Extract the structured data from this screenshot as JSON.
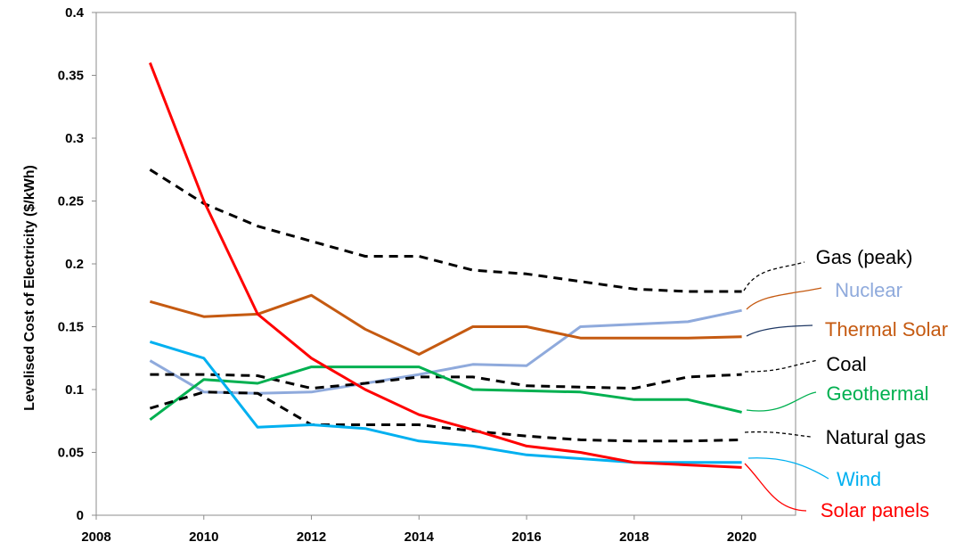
{
  "chart_data": {
    "type": "line",
    "ylabel": "Levelised Cost of Electricity ($/kWh)",
    "xlabel": "",
    "xlim": [
      2008,
      2021
    ],
    "ylim": [
      0,
      0.4
    ],
    "x_ticks": [
      "2008",
      "2010",
      "2012",
      "2014",
      "2016",
      "2018",
      "2020"
    ],
    "y_ticks": [
      "0",
      "0.05",
      "0.1",
      "0.15",
      "0.2",
      "0.25",
      "0.3",
      "0.35",
      "0.4"
    ],
    "grid": false,
    "legend": "inline labels at right end of lines",
    "series": [
      {
        "name": "Gas (peak)",
        "color": "#000000",
        "dash": true,
        "x": [
          2009,
          2010,
          2011,
          2012,
          2013,
          2014,
          2015,
          2016,
          2017,
          2018,
          2019,
          2020
        ],
        "y": [
          0.275,
          0.248,
          0.23,
          0.218,
          0.206,
          0.206,
          0.195,
          0.192,
          0.186,
          0.18,
          0.178,
          0.178
        ]
      },
      {
        "name": "Nuclear",
        "color": "#8faadc",
        "dash": false,
        "x": [
          2009,
          2010,
          2011,
          2012,
          2013,
          2014,
          2015,
          2016,
          2017,
          2018,
          2019,
          2020
        ],
        "y": [
          0.123,
          0.098,
          0.097,
          0.098,
          0.105,
          0.112,
          0.12,
          0.119,
          0.15,
          0.152,
          0.154,
          0.163
        ]
      },
      {
        "name": "Thermal Solar",
        "color": "#c55a11",
        "dash": false,
        "x": [
          2009,
          2010,
          2011,
          2012,
          2013,
          2014,
          2015,
          2016,
          2017,
          2018,
          2019,
          2020
        ],
        "y": [
          0.17,
          0.158,
          0.16,
          0.175,
          0.148,
          0.128,
          0.15,
          0.15,
          0.141,
          0.141,
          0.141,
          0.142
        ]
      },
      {
        "name": "Coal",
        "color": "#000000",
        "dash": true,
        "x": [
          2009,
          2010,
          2011,
          2012,
          2013,
          2014,
          2015,
          2016,
          2017,
          2018,
          2019,
          2020
        ],
        "y": [
          0.112,
          0.112,
          0.111,
          0.101,
          0.105,
          0.11,
          0.11,
          0.103,
          0.102,
          0.101,
          0.11,
          0.112
        ]
      },
      {
        "name": "Geothermal",
        "color": "#00b050",
        "dash": false,
        "x": [
          2009,
          2010,
          2011,
          2012,
          2013,
          2014,
          2015,
          2016,
          2017,
          2018,
          2019,
          2020
        ],
        "y": [
          0.076,
          0.108,
          0.105,
          0.118,
          0.118,
          0.118,
          0.1,
          0.099,
          0.098,
          0.092,
          0.092,
          0.082
        ]
      },
      {
        "name": "Natural gas",
        "color": "#000000",
        "dash": true,
        "x": [
          2009,
          2010,
          2011,
          2012,
          2013,
          2014,
          2015,
          2016,
          2017,
          2018,
          2019,
          2020
        ],
        "y": [
          0.085,
          0.098,
          0.097,
          0.072,
          0.072,
          0.072,
          0.067,
          0.063,
          0.06,
          0.059,
          0.059,
          0.06
        ]
      },
      {
        "name": "Wind",
        "color": "#00b0f0",
        "dash": false,
        "x": [
          2009,
          2010,
          2011,
          2012,
          2013,
          2014,
          2015,
          2016,
          2017,
          2018,
          2019,
          2020
        ],
        "y": [
          0.138,
          0.125,
          0.07,
          0.072,
          0.069,
          0.059,
          0.055,
          0.048,
          0.045,
          0.042,
          0.042,
          0.042
        ]
      },
      {
        "name": "Solar panels",
        "color": "#ff0000",
        "dash": false,
        "x": [
          2009,
          2010,
          2011,
          2012,
          2013,
          2014,
          2015,
          2016,
          2017,
          2018,
          2019,
          2020
        ],
        "y": [
          0.36,
          0.25,
          0.16,
          0.125,
          0.1,
          0.08,
          0.068,
          0.055,
          0.05,
          0.042,
          0.04,
          0.038
        ]
      }
    ]
  }
}
